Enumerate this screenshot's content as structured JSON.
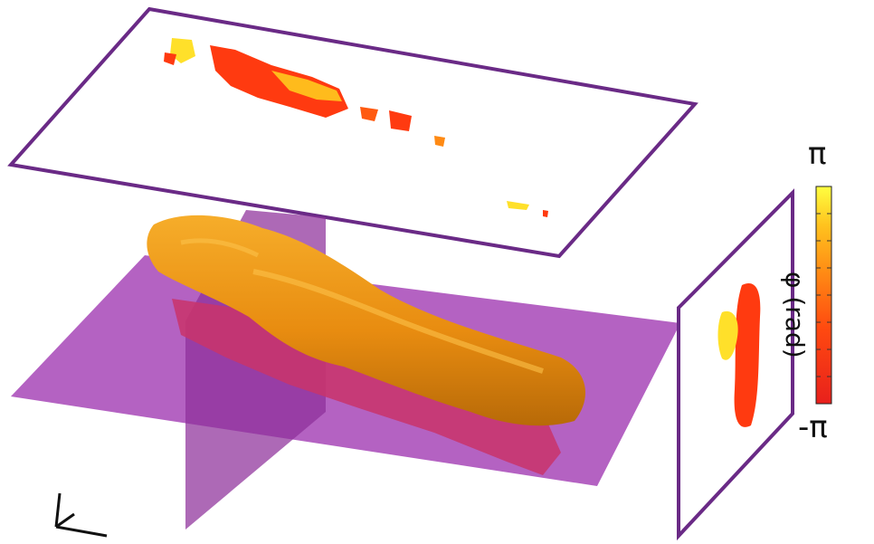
{
  "colorbar": {
    "max_label": "π",
    "min_label": "-π",
    "title": "φ (rad)",
    "colors": [
      "#e8201c",
      "#ff4a10",
      "#ff8a14",
      "#ffc21e",
      "#ffff40"
    ]
  },
  "colors": {
    "frame": "#6a2a86",
    "plane": "#a33fb5",
    "volume": "#f19a14",
    "volume_shadow": "#c9346a"
  },
  "icons": [
    "axis-triad-icon"
  ]
}
